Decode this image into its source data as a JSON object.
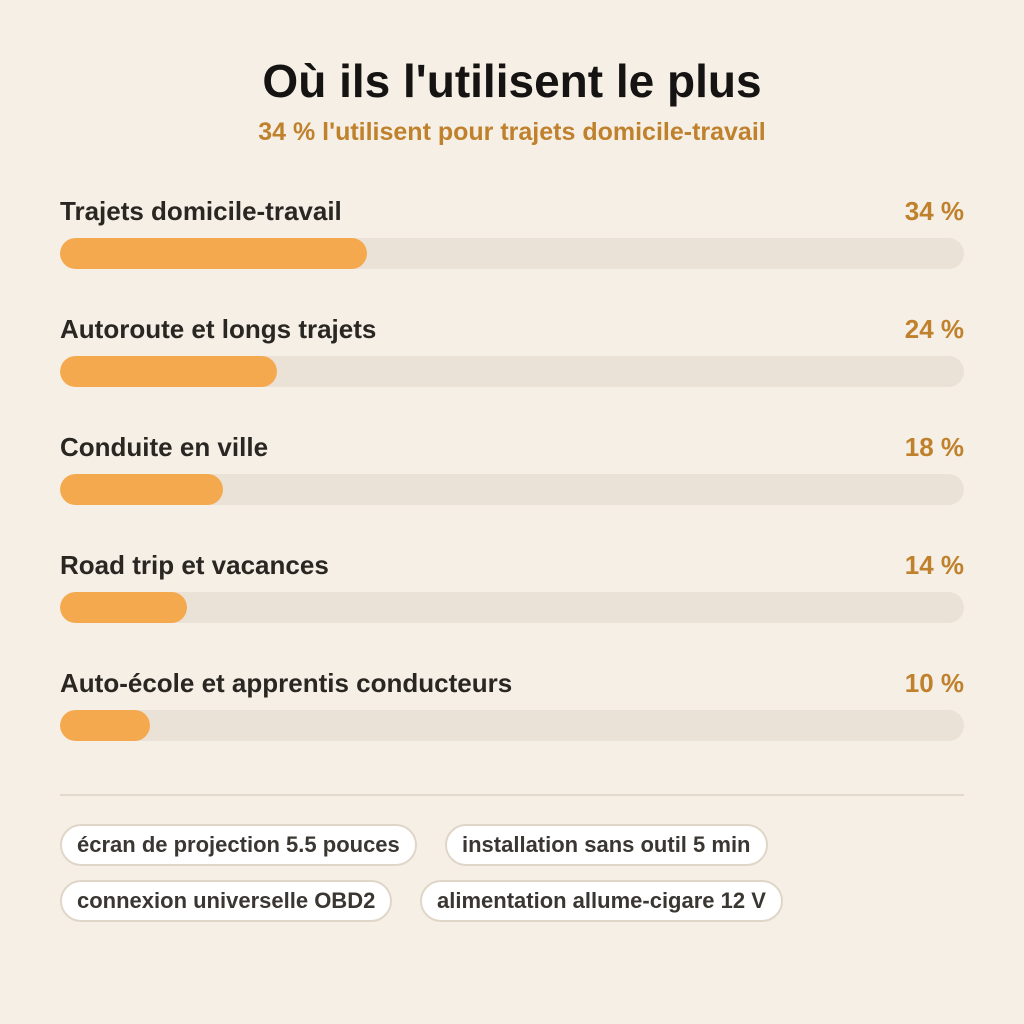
{
  "chart_data": {
    "type": "bar",
    "orientation": "horizontal",
    "title": "Où ils l'utilisent le plus",
    "subtitle": "34 % l'utilisent pour trajets domicile-travail",
    "categories": [
      "Trajets domicile-travail",
      "Autoroute et longs trajets",
      "Conduite en ville",
      "Road trip et vacances",
      "Auto-école et apprentis conducteurs"
    ],
    "values": [
      34,
      24,
      18,
      14,
      10
    ],
    "value_labels": [
      "34 %",
      "24 %",
      "18 %",
      "14 %",
      "10 %"
    ],
    "xlim": [
      0,
      100
    ],
    "grid": false,
    "legend": "none",
    "colors": {
      "bar": "#f5a94e",
      "track": "#ebe2d7",
      "value_text": "#c0812d",
      "background": "#f5efe6"
    }
  },
  "tags": [
    "écran de projection 5.5 pouces",
    "installation sans outil 5 min",
    "connexion universelle OBD2",
    "alimentation allume-cigare 12 V"
  ]
}
